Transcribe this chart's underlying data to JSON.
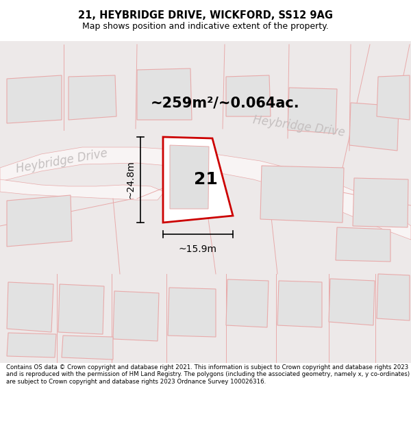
{
  "title": "21, HEYBRIDGE DRIVE, WICKFORD, SS12 9AG",
  "subtitle": "Map shows position and indicative extent of the property.",
  "area_label": "~259m²/~0.064ac.",
  "dim_width_label": "~15.9m",
  "dim_height_label": "~24.8m",
  "house_number": "21",
  "road_label1": "Heybridge Drive",
  "road_label2": "Heybridge Drive",
  "footer": "Contains OS data © Crown copyright and database right 2021. This information is subject to Crown copyright and database rights 2023 and is reproduced with the permission of HM Land Registry. The polygons (including the associated geometry, namely x, y co-ordinates) are subject to Crown copyright and database rights 2023 Ordnance Survey 100026316.",
  "map_bg": "#ede9e9",
  "main_plot_fill": "#ffffff",
  "main_plot_edge": "#cc0000",
  "neighbor_fill": "#e2e2e2",
  "neighbor_edge": "#e8aaaa",
  "road_fill": "#f8f4f4",
  "road_edge": "#e8aaaa",
  "title_fontsize": 10.5,
  "subtitle_fontsize": 9,
  "area_fontsize": 15,
  "dim_fontsize": 10,
  "house_num_fontsize": 18,
  "road_fontsize": 12,
  "footer_fontsize": 6.2
}
